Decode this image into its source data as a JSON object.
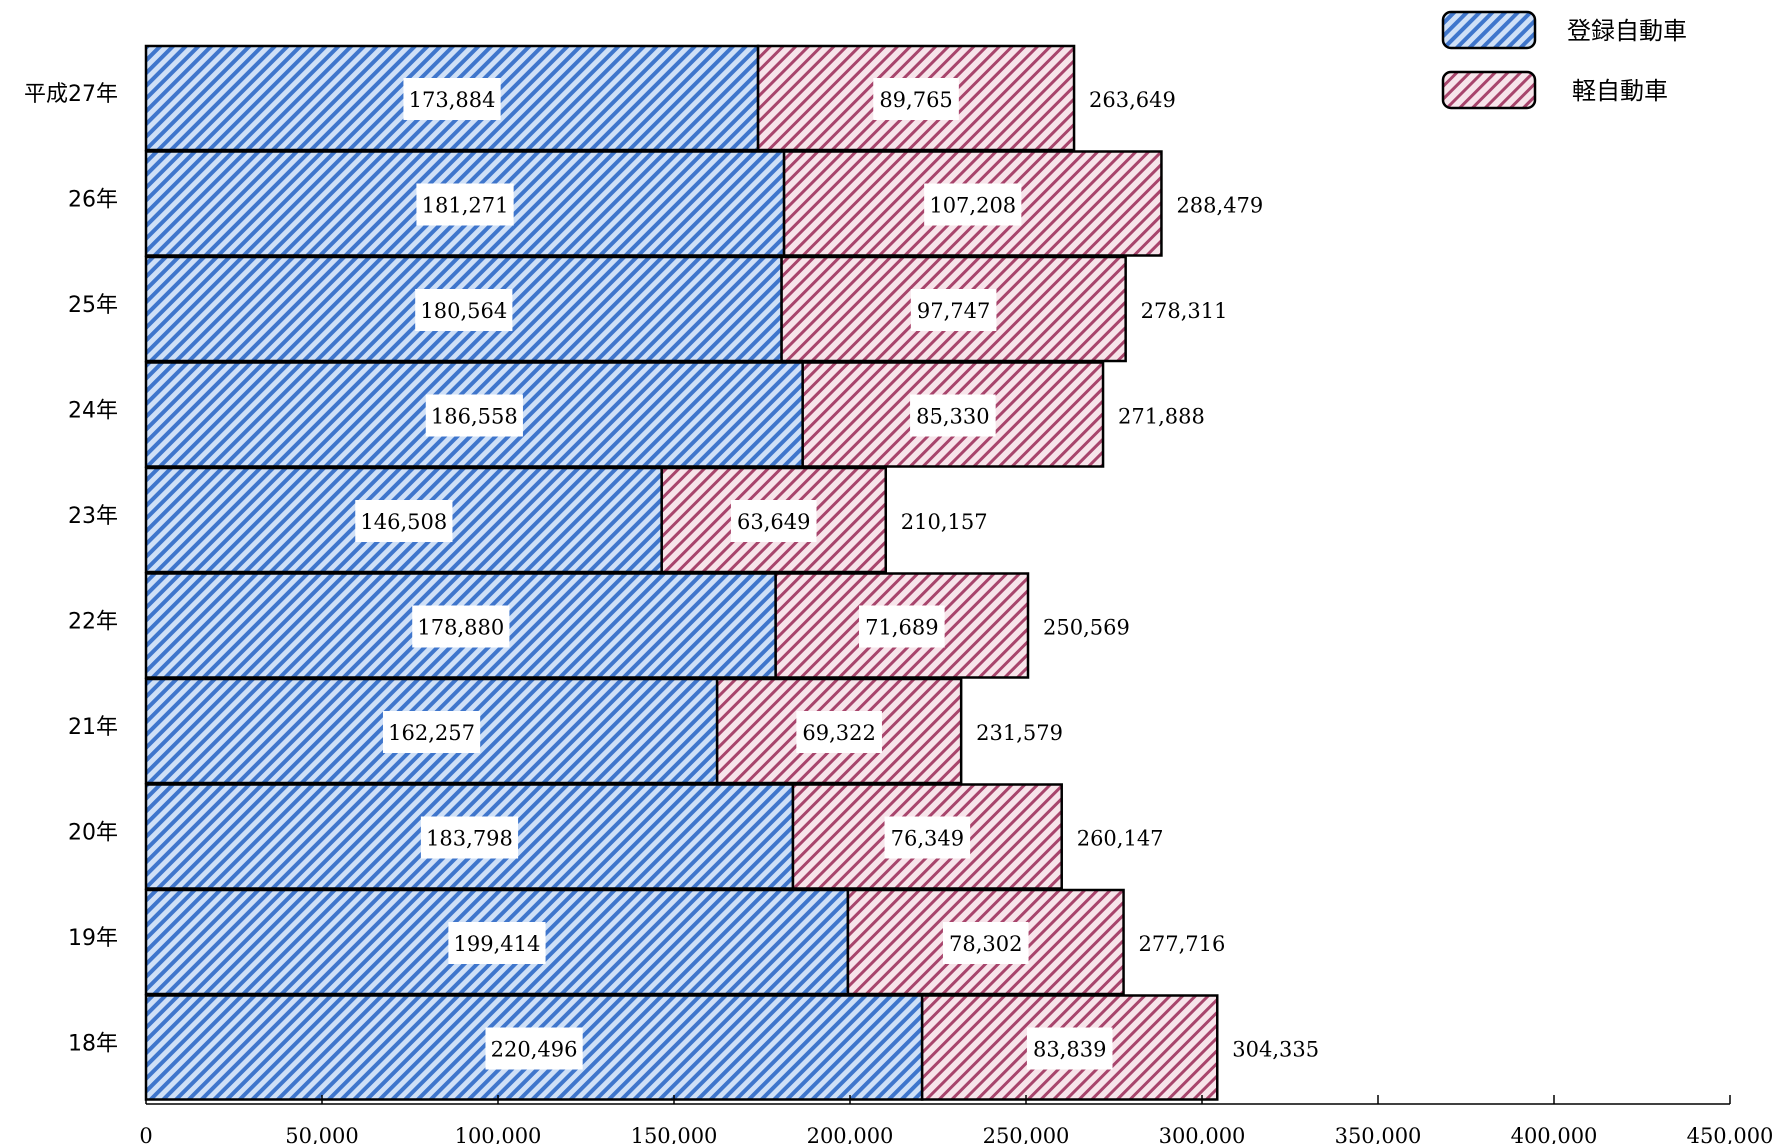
{
  "chart_data": {
    "type": "bar",
    "orientation": "horizontal",
    "stacked": true,
    "categories": [
      "平成27年",
      "26年",
      "25年",
      "24年",
      "23年",
      "22年",
      "21年",
      "20年",
      "19年",
      "18年"
    ],
    "series": [
      {
        "name": "登録自動車",
        "color": "#4a7fd4",
        "values": [
          173884,
          181271,
          180564,
          186558,
          146508,
          178880,
          162257,
          183798,
          199414,
          220496
        ],
        "labels": [
          "173,884",
          "181,271",
          "180,564",
          "186,558",
          "146,508",
          "178,880",
          "162,257",
          "183,798",
          "199,414",
          "220,496"
        ]
      },
      {
        "name": "軽自動車",
        "color": "#b04070",
        "values": [
          89765,
          107208,
          97747,
          85330,
          63649,
          71689,
          69322,
          76349,
          78302,
          83839
        ],
        "labels": [
          "89,765",
          "107,208",
          "97,747",
          "85,330",
          "63,649",
          "71,689",
          "69,322",
          "76,349",
          "78,302",
          "83,839"
        ]
      }
    ],
    "totals": [
      263649,
      288479,
      278311,
      271888,
      210157,
      250569,
      231579,
      260147,
      277716,
      304335
    ],
    "total_labels": [
      "263,649",
      "288,479",
      "278,311",
      "271,888",
      "210,157",
      "250,569",
      "231,579",
      "260,147",
      "277,716",
      "304,335"
    ],
    "xlim": [
      0,
      450000
    ],
    "xticks": [
      0,
      50000,
      100000,
      150000,
      200000,
      250000,
      300000,
      350000,
      400000,
      450000
    ],
    "xtick_labels": [
      "0",
      "50,000",
      "100,000",
      "150,000",
      "200,000",
      "250,000",
      "300,000",
      "350,000",
      "400,000",
      "450,000"
    ],
    "legend": {
      "position": "top-right",
      "items": [
        "登録自動車",
        "軽自動車"
      ]
    },
    "grid": false
  }
}
